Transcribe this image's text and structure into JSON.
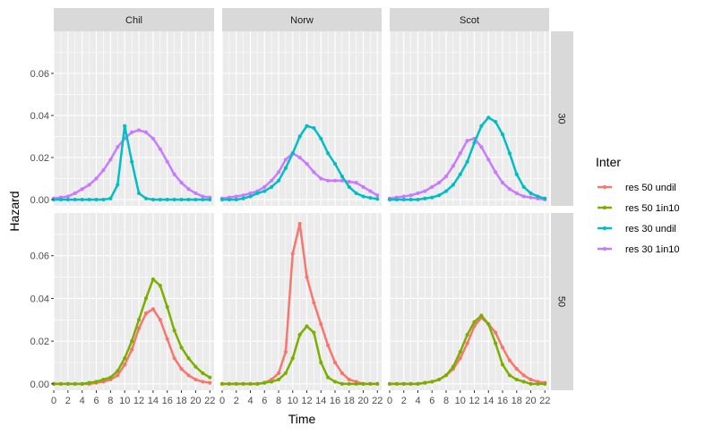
{
  "chart_data": {
    "type": "line",
    "xlabel": "Time",
    "ylabel": "Hazard",
    "xlim": [
      0,
      22.6
    ],
    "ylim": [
      -0.003,
      0.08
    ],
    "x_ticks": [
      "0",
      "2",
      "4",
      "6",
      "8",
      "10",
      "12",
      "14",
      "16",
      "18",
      "20",
      "22"
    ],
    "y_ticks": [
      "0.00",
      "0.02",
      "0.04",
      "0.06"
    ],
    "col_facets": [
      "Chil",
      "Norw",
      "Scot"
    ],
    "row_facets": [
      "30",
      "50"
    ],
    "legend": {
      "title": "Inter",
      "position": "right",
      "entries": [
        {
          "name": "res 50 undil",
          "color": "#F8766D"
        },
        {
          "name": "res 50 1in10",
          "color": "#7CAE00"
        },
        {
          "name": "res 30 undil",
          "color": "#00BFC4"
        },
        {
          "name": "res 30 1in10",
          "color": "#C77CFF"
        }
      ]
    },
    "x": [
      0,
      1,
      2,
      3,
      4,
      5,
      6,
      7,
      8,
      9,
      10,
      11,
      12,
      13,
      14,
      15,
      16,
      17,
      18,
      19,
      20,
      21,
      22
    ],
    "panels": [
      {
        "col": "Chil",
        "row": "30",
        "series": [
          {
            "name": "res 30 1in10",
            "color": "#C77CFF",
            "values": [
              0.0005,
              0.001,
              0.0015,
              0.003,
              0.005,
              0.007,
              0.01,
              0.014,
              0.019,
              0.025,
              0.029,
              0.032,
              0.033,
              0.032,
              0.029,
              0.024,
              0.018,
              0.012,
              0.008,
              0.005,
              0.003,
              0.0015,
              0.001
            ]
          },
          {
            "name": "res 30 undil",
            "color": "#00BFC4",
            "values": [
              0,
              0,
              0,
              0,
              0,
              0,
              0,
              0,
              0.0005,
              0.007,
              0.035,
              0.018,
              0.003,
              0.0005,
              0,
              0,
              0,
              0,
              0,
              0,
              0,
              0,
              0
            ]
          }
        ]
      },
      {
        "col": "Norw",
        "row": "30",
        "series": [
          {
            "name": "res 30 1in10",
            "color": "#C77CFF",
            "values": [
              0.0005,
              0.001,
              0.0015,
              0.002,
              0.003,
              0.004,
              0.006,
              0.009,
              0.013,
              0.019,
              0.022,
              0.02,
              0.017,
              0.013,
              0.01,
              0.009,
              0.009,
              0.009,
              0.0085,
              0.008,
              0.006,
              0.004,
              0.002
            ]
          },
          {
            "name": "res 30 undil",
            "color": "#00BFC4",
            "values": [
              0,
              0,
              0,
              0.0005,
              0.0015,
              0.003,
              0.004,
              0.006,
              0.009,
              0.015,
              0.022,
              0.03,
              0.035,
              0.034,
              0.029,
              0.022,
              0.017,
              0.011,
              0.006,
              0.003,
              0.0015,
              0.0008,
              0.0003
            ]
          }
        ]
      },
      {
        "col": "Scot",
        "row": "30",
        "series": [
          {
            "name": "res 30 1in10",
            "color": "#C77CFF",
            "values": [
              0.0005,
              0.001,
              0.0015,
              0.002,
              0.003,
              0.004,
              0.006,
              0.008,
              0.011,
              0.016,
              0.022,
              0.028,
              0.029,
              0.025,
              0.019,
              0.013,
              0.008,
              0.005,
              0.003,
              0.0015,
              0.001,
              0.0005,
              0
            ]
          },
          {
            "name": "res 30 undil",
            "color": "#00BFC4",
            "values": [
              0,
              0,
              0,
              0,
              0,
              0.0005,
              0.001,
              0.002,
              0.004,
              0.007,
              0.012,
              0.018,
              0.027,
              0.035,
              0.039,
              0.037,
              0.031,
              0.022,
              0.012,
              0.006,
              0.003,
              0.0015,
              0.0005
            ]
          }
        ]
      },
      {
        "col": "Chil",
        "row": "50",
        "series": [
          {
            "name": "res 50 undil",
            "color": "#F8766D",
            "values": [
              0,
              0,
              0,
              0,
              0,
              0,
              0.0005,
              0.001,
              0.002,
              0.004,
              0.009,
              0.016,
              0.026,
              0.033,
              0.035,
              0.03,
              0.021,
              0.012,
              0.007,
              0.004,
              0.002,
              0.001,
              0.0005
            ]
          },
          {
            "name": "res 50 1in10",
            "color": "#7CAE00",
            "values": [
              0,
              0,
              0,
              0,
              0,
              0.0005,
              0.001,
              0.002,
              0.003,
              0.006,
              0.012,
              0.02,
              0.03,
              0.04,
              0.049,
              0.046,
              0.036,
              0.025,
              0.017,
              0.012,
              0.008,
              0.005,
              0.003
            ]
          }
        ]
      },
      {
        "col": "Norw",
        "row": "50",
        "series": [
          {
            "name": "res 50 undil",
            "color": "#F8766D",
            "values": [
              0,
              0,
              0,
              0,
              0,
              0,
              0.0005,
              0.002,
              0.005,
              0.015,
              0.061,
              0.075,
              0.05,
              0.038,
              0.028,
              0.018,
              0.01,
              0.005,
              0.002,
              0.001,
              0,
              0,
              0
            ]
          },
          {
            "name": "res 50 1in10",
            "color": "#7CAE00",
            "values": [
              0,
              0,
              0,
              0,
              0,
              0,
              0.0005,
              0.001,
              0.002,
              0.005,
              0.012,
              0.023,
              0.027,
              0.024,
              0.01,
              0.003,
              0.001,
              0,
              0,
              0,
              0,
              0,
              0
            ]
          }
        ]
      },
      {
        "col": "Scot",
        "row": "50",
        "series": [
          {
            "name": "res 50 undil",
            "color": "#F8766D",
            "values": [
              0,
              0,
              0,
              0,
              0,
              0.0005,
              0.001,
              0.002,
              0.004,
              0.007,
              0.012,
              0.019,
              0.027,
              0.031,
              0.028,
              0.024,
              0.017,
              0.011,
              0.007,
              0.004,
              0.002,
              0.001,
              0.0005
            ]
          },
          {
            "name": "res 50 1in10",
            "color": "#7CAE00",
            "values": [
              0,
              0,
              0,
              0,
              0,
              0.0005,
              0.001,
              0.002,
              0.004,
              0.008,
              0.015,
              0.023,
              0.029,
              0.032,
              0.028,
              0.019,
              0.009,
              0.004,
              0.002,
              0.001,
              0,
              0,
              0
            ]
          }
        ]
      }
    ]
  }
}
